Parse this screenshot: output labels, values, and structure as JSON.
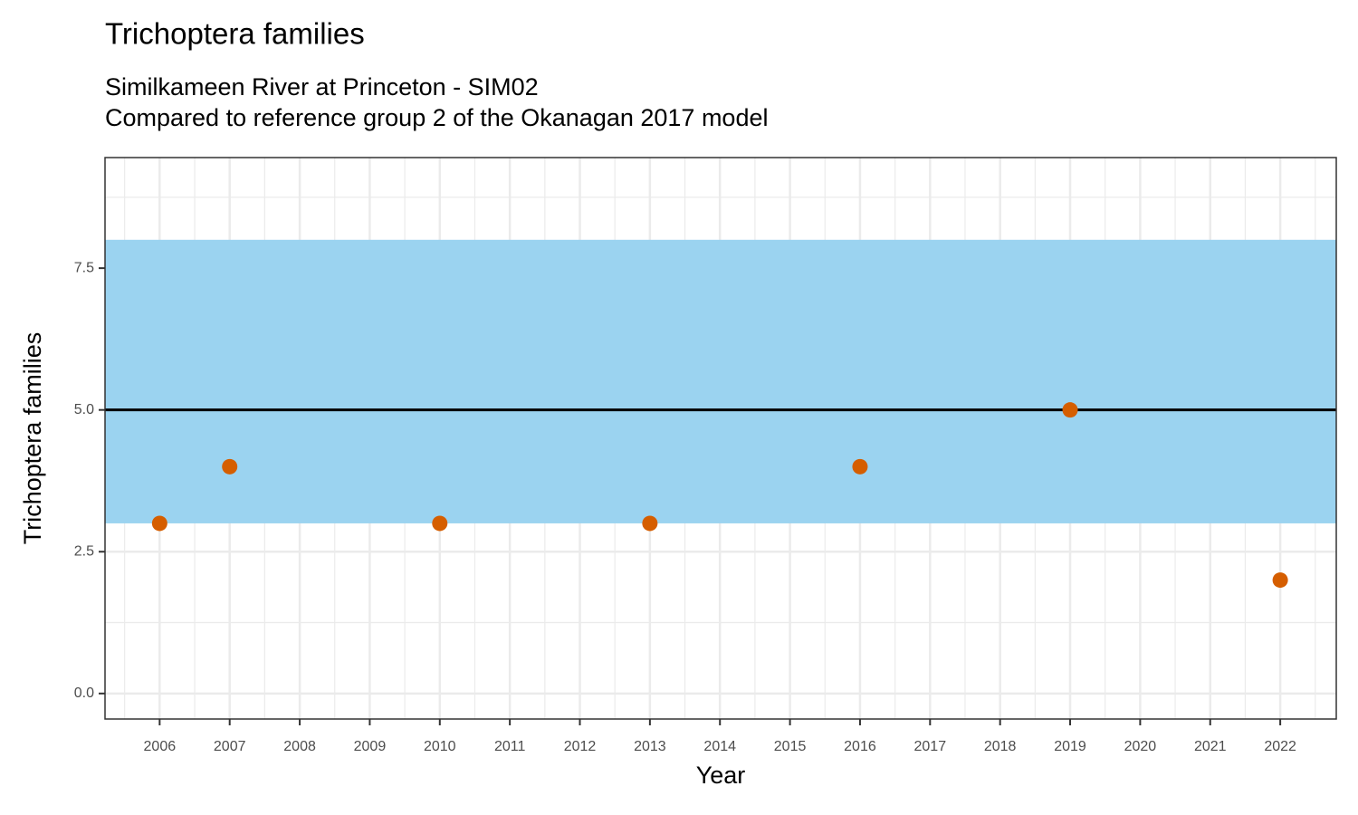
{
  "chart_data": {
    "type": "scatter",
    "title": "Trichoptera families",
    "subtitle": [
      "Similkameen River at Princeton - SIM02",
      "Compared to reference group 2 of the Okanagan 2017 model"
    ],
    "x_label": "Year",
    "y_label": "Trichoptera families",
    "x": [
      2006,
      2007,
      2010,
      2013,
      2016,
      2019,
      2022
    ],
    "values": [
      3,
      4,
      3,
      3,
      4,
      5,
      2
    ],
    "color": "#d55e00",
    "band": [
      3,
      8
    ],
    "band_color": "#9bd3f0",
    "reference_line": 5,
    "reference_line_color": "#000000",
    "xlim": [
      2005.22,
      2022.8
    ],
    "xticks": [
      2006,
      2007,
      2008,
      2009,
      2010,
      2011,
      2012,
      2013,
      2014,
      2015,
      2016,
      2017,
      2018,
      2019,
      2020,
      2021,
      2022
    ],
    "ylim": [
      -0.45,
      9.45
    ],
    "yticks": [
      {
        "value": 0,
        "label": "0.0"
      },
      2.5,
      {
        "value": 5,
        "label": "5.0"
      },
      7.5
    ],
    "grid": true
  }
}
